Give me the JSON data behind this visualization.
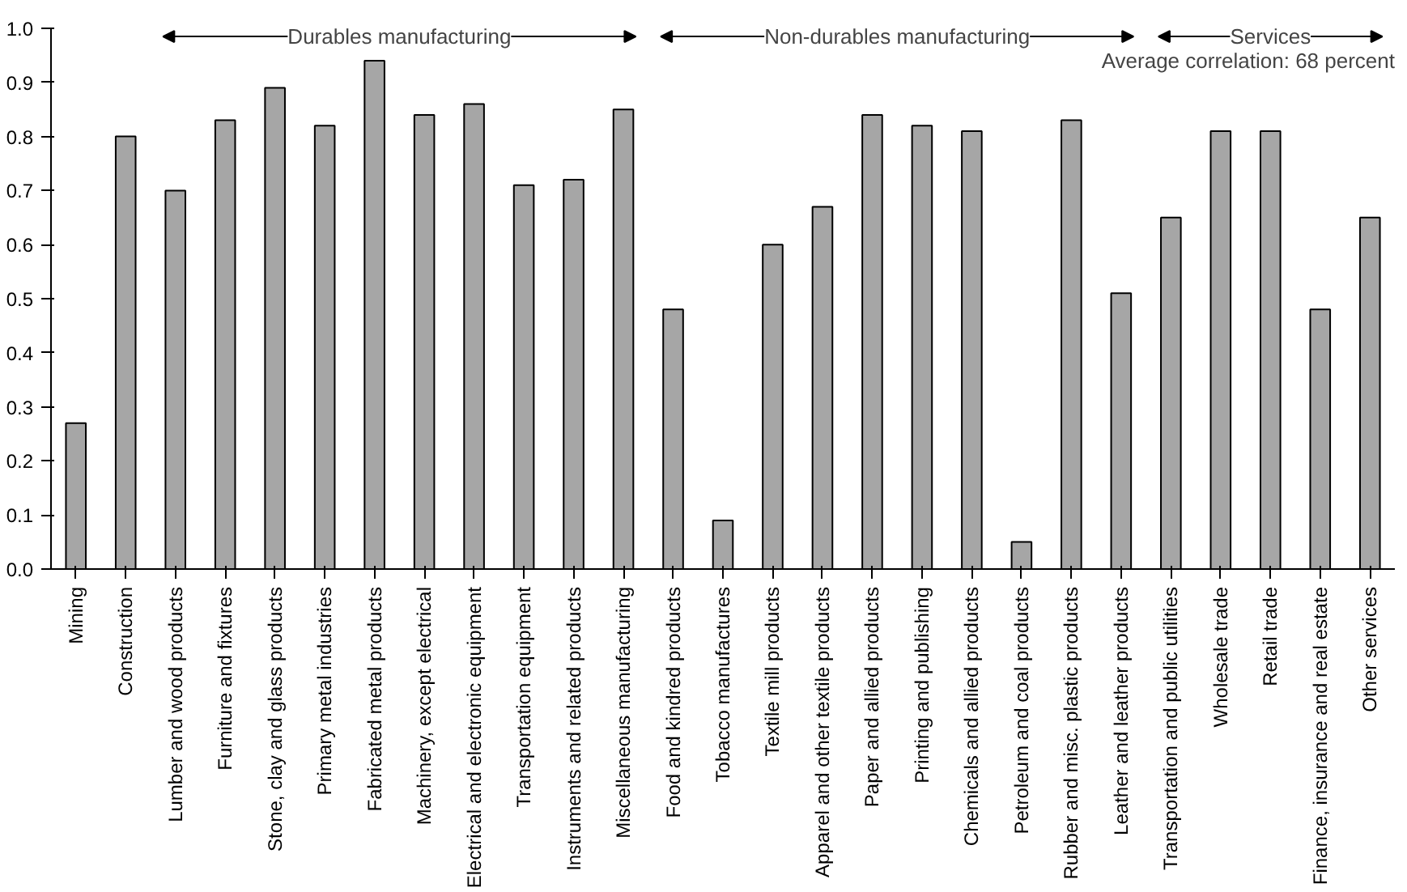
{
  "chart_data": {
    "type": "bar",
    "categories": [
      "Mining",
      "Construction",
      "Lumber and wood products",
      "Furniture and fixtures",
      "Stone, clay and glass products",
      "Primary metal industries",
      "Fabricated metal products",
      "Machinery, except electrical",
      "Electrical and electronic equipment",
      "Transportation equipment",
      "Instruments and related products",
      "Miscellaneous manufacturing",
      "Food and kindred products",
      "Tobacco manufactures",
      "Textile mill products",
      "Apparel and other textile products",
      "Paper and allied products",
      "Printing and publishing",
      "Chemicals and allied products",
      "Petroleum and coal products",
      "Rubber and misc. plastic products",
      "Leather and leather products",
      "Transportation and public utilities",
      "Wholesale trade",
      "Retail trade",
      "Finance, insurance and real estate",
      "Other services"
    ],
    "values": [
      0.27,
      0.8,
      0.7,
      0.83,
      0.89,
      0.82,
      0.94,
      0.84,
      0.86,
      0.71,
      0.72,
      0.85,
      0.48,
      0.09,
      0.6,
      0.67,
      0.84,
      0.82,
      0.81,
      0.05,
      0.83,
      0.51,
      0.65,
      0.81,
      0.81,
      0.48,
      0.65
    ],
    "color": "#a6a6a6",
    "ylim": [
      0,
      1.0
    ],
    "yticks": [
      {
        "value": 0,
        "label": "0.0"
      },
      {
        "value": 0.1,
        "label": "0.1"
      },
      {
        "value": 0.2,
        "label": "0.2"
      },
      {
        "value": 0.3,
        "label": "0.3"
      },
      {
        "value": 0.4,
        "label": "0.4"
      },
      {
        "value": 0.5,
        "label": "0.5"
      },
      {
        "value": 0.6,
        "label": "0.6"
      },
      {
        "value": 0.7,
        "label": "0.7"
      },
      {
        "value": 0.8,
        "label": "0.8"
      },
      {
        "value": 0.9,
        "label": "0.9"
      },
      {
        "value": 1.0,
        "label": "1.0"
      }
    ],
    "grid": false,
    "annotations": [
      "Durables manufacturing",
      "Non-durables manufacturing",
      "Services",
      "Average correlation: 68 percent"
    ]
  }
}
